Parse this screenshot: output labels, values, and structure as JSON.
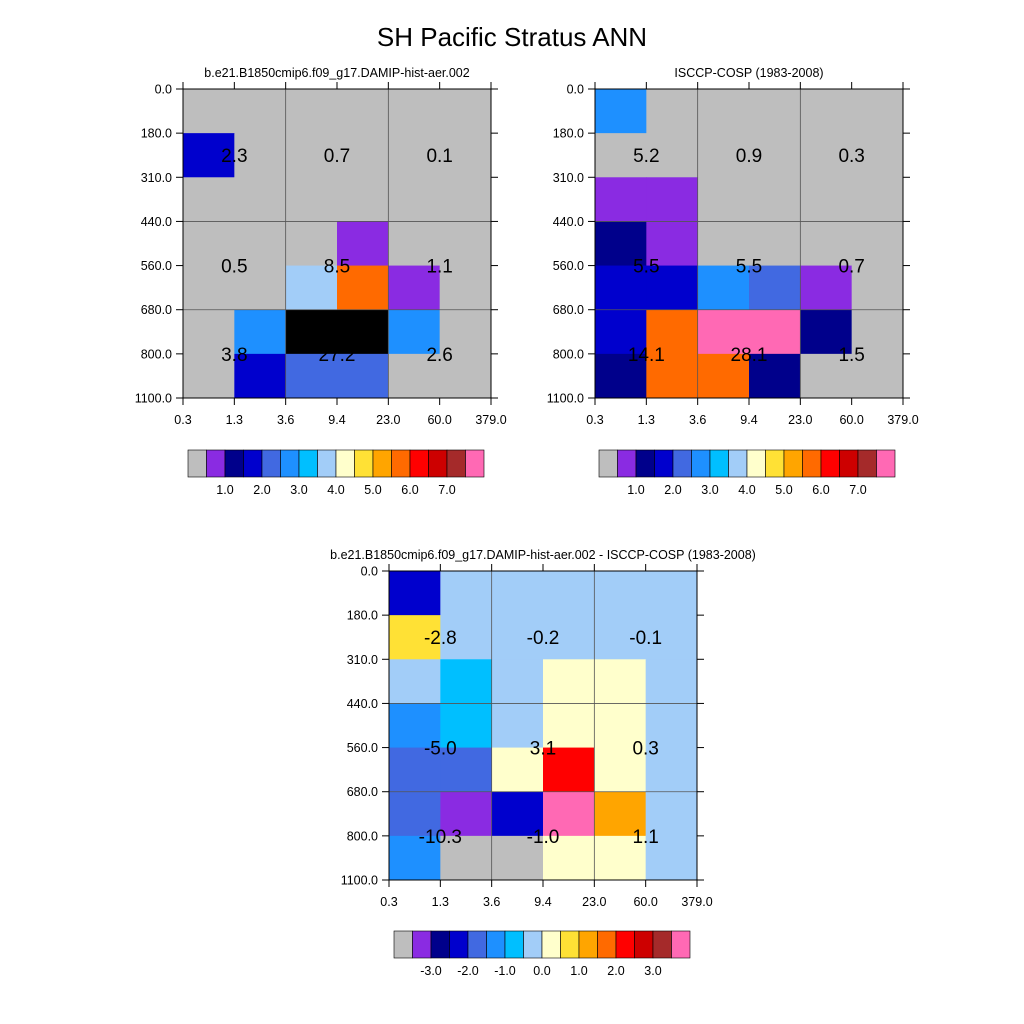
{
  "page_title": "SH Pacific Stratus ANN",
  "chart_data": [
    {
      "type": "heatmap",
      "title": "b.e21.B1850cmip6.f09_g17.DAMIP-hist-aer.002",
      "x_tick_labels": [
        "0.3",
        "1.3",
        "3.6",
        "9.4",
        "23.0",
        "60.0",
        "379.0"
      ],
      "y_tick_labels": [
        "0.0",
        "180.0",
        "310.0",
        "440.0",
        "560.0",
        "680.0",
        "800.0",
        "1100.0"
      ],
      "cell_fill_indices": [
        [
          0,
          0,
          0,
          0,
          0,
          0
        ],
        [
          3,
          0,
          0,
          0,
          0,
          0
        ],
        [
          0,
          0,
          0,
          0,
          0,
          0
        ],
        [
          0,
          0,
          0,
          1,
          0,
          0
        ],
        [
          0,
          0,
          7,
          11,
          1,
          0
        ],
        [
          0,
          5,
          16,
          16,
          5,
          0
        ],
        [
          0,
          3,
          4,
          4,
          0,
          0
        ]
      ],
      "group_values": [
        [
          "2.3",
          "0.7",
          "0.1"
        ],
        [
          "0.5",
          "8.5",
          "1.1"
        ],
        [
          "3.8",
          "27.2",
          "2.6"
        ]
      ],
      "colorbar": {
        "colors": [
          "#bebebe",
          "#8a2be2",
          "#00008b",
          "#0000cd",
          "#4169e1",
          "#1e90ff",
          "#00bfff",
          "#a2cdf8",
          "#ffffcc",
          "#ffe135",
          "#ffa500",
          "#ff6a00",
          "#ff0000",
          "#cd0000",
          "#a52a2a",
          "#ff69b4"
        ],
        "labels": [
          "1.0",
          "2.0",
          "3.0",
          "4.0",
          "5.0",
          "6.0",
          "7.0"
        ]
      }
    },
    {
      "type": "heatmap",
      "title": "ISCCP-COSP (1983-2008)",
      "x_tick_labels": [
        "0.3",
        "1.3",
        "3.6",
        "9.4",
        "23.0",
        "60.0",
        "379.0"
      ],
      "y_tick_labels": [
        "0.0",
        "180.0",
        "310.0",
        "440.0",
        "560.0",
        "680.0",
        "800.0",
        "1100.0"
      ],
      "cell_fill_indices": [
        [
          5,
          0,
          0,
          0,
          0,
          0
        ],
        [
          0,
          0,
          0,
          0,
          0,
          0
        ],
        [
          1,
          1,
          0,
          0,
          0,
          0
        ],
        [
          2,
          1,
          0,
          0,
          0,
          0
        ],
        [
          3,
          3,
          5,
          4,
          1,
          0
        ],
        [
          3,
          11,
          15,
          15,
          2,
          0
        ],
        [
          2,
          11,
          11,
          2,
          0,
          0
        ]
      ],
      "group_values": [
        [
          "5.2",
          "0.9",
          "0.3"
        ],
        [
          "5.5",
          "5.5",
          "0.7"
        ],
        [
          "14.1",
          "28.1",
          "1.5"
        ]
      ],
      "colorbar": {
        "colors": [
          "#bebebe",
          "#8a2be2",
          "#00008b",
          "#0000cd",
          "#4169e1",
          "#1e90ff",
          "#00bfff",
          "#a2cdf8",
          "#ffffcc",
          "#ffe135",
          "#ffa500",
          "#ff6a00",
          "#ff0000",
          "#cd0000",
          "#a52a2a",
          "#ff69b4"
        ],
        "labels": [
          "1.0",
          "2.0",
          "3.0",
          "4.0",
          "5.0",
          "6.0",
          "7.0"
        ]
      }
    },
    {
      "type": "heatmap",
      "title": "b.e21.B1850cmip6.f09_g17.DAMIP-hist-aer.002 - ISCCP-COSP (1983-2008)",
      "x_tick_labels": [
        "0.3",
        "1.3",
        "3.6",
        "9.4",
        "23.0",
        "60.0",
        "379.0"
      ],
      "y_tick_labels": [
        "0.0",
        "180.0",
        "310.0",
        "440.0",
        "560.0",
        "680.0",
        "800.0",
        "1100.0"
      ],
      "cell_fill_indices": [
        [
          3,
          7,
          7,
          7,
          7,
          7
        ],
        [
          9,
          7,
          7,
          7,
          7,
          7
        ],
        [
          7,
          6,
          7,
          8,
          8,
          7
        ],
        [
          5,
          6,
          7,
          8,
          8,
          7
        ],
        [
          4,
          4,
          8,
          12,
          8,
          7
        ],
        [
          4,
          1,
          3,
          15,
          10,
          7
        ],
        [
          5,
          0,
          0,
          8,
          8,
          7
        ]
      ],
      "group_values": [
        [
          "-2.8",
          "-0.2",
          "-0.1"
        ],
        [
          "-5.0",
          "3.1",
          "0.3"
        ],
        [
          "-10.3",
          "-1.0",
          "1.1"
        ]
      ],
      "colorbar": {
        "colors": [
          "#bebebe",
          "#8a2be2",
          "#00008b",
          "#0000cd",
          "#4169e1",
          "#1e90ff",
          "#00bfff",
          "#a2cdf8",
          "#ffffcc",
          "#ffe135",
          "#ffa500",
          "#ff6a00",
          "#ff0000",
          "#cd0000",
          "#a52a2a",
          "#ff69b4"
        ],
        "labels": [
          "-3.0",
          "-2.0",
          "-1.0",
          "0.0",
          "1.0",
          "2.0",
          "3.0"
        ]
      }
    }
  ]
}
